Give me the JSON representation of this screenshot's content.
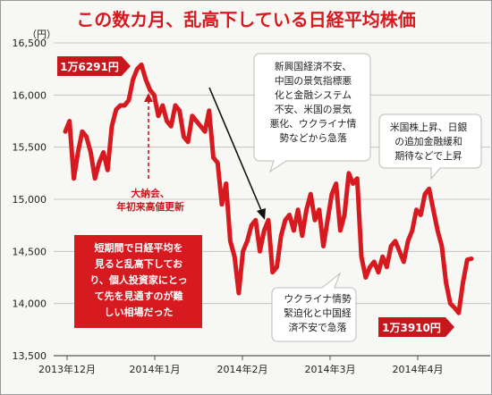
{
  "chart_data": {
    "type": "line",
    "title": "この数カ月、乱高下している日経平均株価",
    "yunit": "（円）",
    "ylim": [
      13500,
      16500
    ],
    "yticks": [
      "13,500",
      "14,000",
      "14,500",
      "15,000",
      "15,500",
      "16,000",
      "16,500"
    ],
    "ytick_values": [
      13500,
      14000,
      14500,
      15000,
      15500,
      16000,
      16500
    ],
    "xticks": [
      "2013年12月",
      "2014年1月",
      "2014年2月",
      "2014年3月",
      "2014年4月"
    ],
    "grid": true,
    "line_color": "#d71920",
    "series": [
      {
        "values": [
          15650,
          15750,
          15200,
          15450,
          15650,
          15600,
          15450,
          15200,
          15350,
          15450,
          15280,
          15700,
          15860,
          15900,
          15900,
          15950,
          16150,
          16250,
          16291,
          16150,
          16050,
          16000,
          15800,
          15900,
          15750,
          15700,
          15900,
          15850,
          15600,
          15550,
          15800,
          15750,
          15700,
          15650,
          15850,
          15400,
          15350,
          14950,
          15150,
          14600,
          14450,
          14100,
          14500,
          14600,
          14750,
          14800,
          14500,
          14700,
          14800,
          14300,
          14350,
          14650,
          14800,
          14850,
          14700,
          14900,
          14650,
          14900,
          15050,
          14800,
          14900,
          14550,
          14800,
          15050,
          15150,
          14700,
          14850,
          15250,
          15150,
          15200,
          14450,
          14250,
          14350,
          14400,
          14300,
          14450,
          14350,
          14550,
          14600,
          14500,
          14400,
          14600,
          14700,
          14900,
          14850,
          15050,
          15100,
          14900,
          14700,
          14550,
          14200,
          14000,
          13960,
          13910,
          14200,
          14420,
          14430
        ]
      }
    ],
    "annotations": {
      "peak_value": "1万6291円",
      "trough_value": "1万3910円",
      "peak_note": "大納会、\n年初来高値更新",
      "note_decline": "新興国経済不安、\n中国の景気指標悪\n化と金融システム\n不安、米国の景気\n悪化、ウクライナ情\n勢などから急落",
      "note_rise": "米国株上昇、日銀\nの追加金融緩和\n期待などで上昇",
      "note_ukraine": "ウクライナ情勢\n緊迫化と中国経\n済不安で急落",
      "note_summary": "短期間で日経平均を\n見ると乱高下してお\nり、個人投資家にとっ\nて先を見通すのが難\nしい相場だった"
    }
  }
}
